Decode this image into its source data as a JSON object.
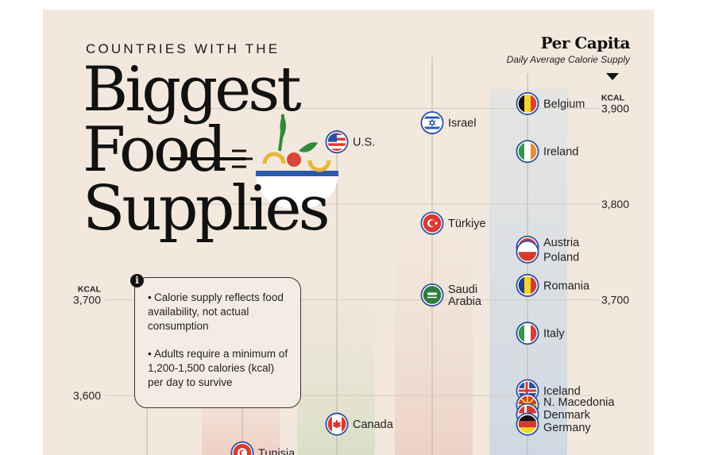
{
  "header": {
    "kicker": "COUNTRIES WITH THE",
    "title_line1": "Biggest",
    "title_line2": "Food",
    "title_line3": "Supplies"
  },
  "per_capita": {
    "title": "Per Capita",
    "subtitle": "Daily Average Calorie Supply"
  },
  "note": {
    "bullet1": "Calorie supply reflects food availability, not actual consumption",
    "bullet2": "Adults require a minimum of 1,200-1,500 calories (kcal) per day to survive"
  },
  "colors": {
    "background": "#f2e8dd",
    "band_red": "#f0d6cc",
    "band_green": "#dde2cc",
    "band_blue": "#d3dbe3",
    "axis_line": "#b9b1a9",
    "ink": "#111111"
  },
  "chart_data": {
    "type": "scatter",
    "title": "Countries With the Biggest Food Supplies",
    "subtitle": "Per Capita — Daily Average Calorie Supply",
    "unit": "KCAL",
    "y_axis": {
      "ticks": [
        3600,
        3700,
        3800,
        3900
      ],
      "tick_labels": [
        "3,600",
        "3,700",
        "3,800",
        "3,900"
      ],
      "left_ticks": [
        3600,
        3700
      ],
      "left_tick_labels": [
        "3,600",
        "3,700"
      ],
      "right_ticks": [
        3700,
        3800,
        3900
      ],
      "right_tick_labels": [
        "3,700",
        "3,800",
        "3,900"
      ]
    },
    "columns": [
      "col-1",
      "col-2",
      "col-3",
      "col-4",
      "col-5"
    ],
    "points": [
      {
        "country": "Tunisia",
        "label": "Tunisia",
        "column": 1,
        "kcal": 3540,
        "flag": "tunisia-flag-icon"
      },
      {
        "country": "U.S.",
        "label": "U.S.",
        "column": 2,
        "kcal": 3865,
        "flag": "us-flag-icon"
      },
      {
        "country": "Canada",
        "label": "Canada",
        "column": 2,
        "kcal": 3570,
        "flag": "canada-flag-icon"
      },
      {
        "country": "Israel",
        "label": "Israel",
        "column": 3,
        "kcal": 3885,
        "flag": "israel-flag-icon"
      },
      {
        "country": "Türkiye",
        "label": "Türkiye",
        "column": 3,
        "kcal": 3780,
        "flag": "turkiye-flag-icon"
      },
      {
        "country": "Saudi Arabia",
        "label": "Saudi Arabia",
        "column": 3,
        "kcal": 3705,
        "flag": "saudi-arabia-flag-icon"
      },
      {
        "country": "Belgium",
        "label": "Belgium",
        "column": 4,
        "kcal": 3905,
        "flag": "belgium-flag-icon"
      },
      {
        "country": "Ireland",
        "label": "Ireland",
        "column": 4,
        "kcal": 3855,
        "flag": "ireland-flag-icon"
      },
      {
        "country": "Austria",
        "label": "Austria",
        "column": 4,
        "kcal": 3755,
        "flag": "austria-flag-icon"
      },
      {
        "country": "Poland",
        "label": "Poland",
        "column": 4,
        "kcal": 3750,
        "flag": "poland-flag-icon"
      },
      {
        "country": "Romania",
        "label": "Romania",
        "column": 4,
        "kcal": 3715,
        "flag": "romania-flag-icon"
      },
      {
        "country": "Italy",
        "label": "Italy",
        "column": 4,
        "kcal": 3665,
        "flag": "italy-flag-icon"
      },
      {
        "country": "Iceland",
        "label": "Iceland",
        "column": 4,
        "kcal": 3605,
        "flag": "iceland-flag-icon"
      },
      {
        "country": "N. Macedonia",
        "label": "N. Macedonia",
        "column": 4,
        "kcal": 3590,
        "flag": "n-macedonia-flag-icon"
      },
      {
        "country": "Denmark",
        "label": "Denmark",
        "column": 4,
        "kcal": 3580,
        "flag": "denmark-flag-icon"
      },
      {
        "country": "Germany",
        "label": "Germany",
        "column": 4,
        "kcal": 3570,
        "flag": "germany-flag-icon"
      }
    ]
  }
}
